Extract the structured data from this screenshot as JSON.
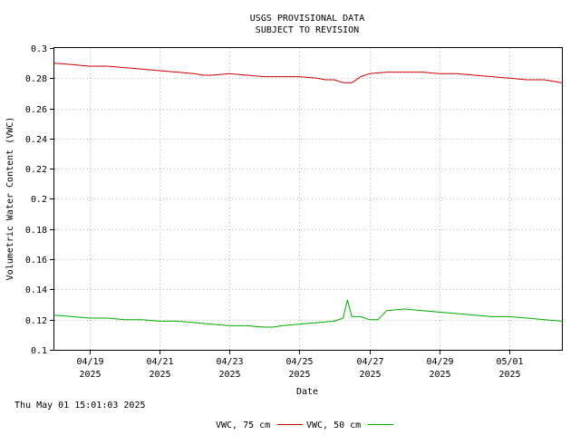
{
  "header": {
    "line1": "USGS PROVISIONAL DATA",
    "line2": "SUBJECT TO REVISION"
  },
  "footer": {
    "timestamp": "Thu May 01 15:01:03 2025"
  },
  "chart_data": {
    "type": "line",
    "xlabel": "Date",
    "ylabel": "Volumetric Water Content (VWC)",
    "xlim": [
      "2025-04-18T00:00",
      "2025-05-02T12:00"
    ],
    "ylim": [
      0.1,
      0.3
    ],
    "grid": true,
    "legend_position": "bottom-center",
    "y_ticks": [
      "0.1",
      "0.12",
      "0.14",
      "0.16",
      "0.18",
      "0.2",
      "0.22",
      "0.24",
      "0.26",
      "0.28",
      "0.3"
    ],
    "x_ticks": [
      {
        "date": "2025-04-19",
        "label": "04/19",
        "year": "2025"
      },
      {
        "date": "2025-04-21",
        "label": "04/21",
        "year": "2025"
      },
      {
        "date": "2025-04-23",
        "label": "04/23",
        "year": "2025"
      },
      {
        "date": "2025-04-25",
        "label": "04/25",
        "year": "2025"
      },
      {
        "date": "2025-04-27",
        "label": "04/27",
        "year": "2025"
      },
      {
        "date": "2025-04-29",
        "label": "04/29",
        "year": "2025"
      },
      {
        "date": "2025-05-01",
        "label": "05/01",
        "year": "2025"
      }
    ],
    "series": [
      {
        "name": "VWC, 75 cm",
        "color": "#cc0000",
        "x": [
          "2025-04-18T00:00",
          "2025-04-18T12:00",
          "2025-04-19T00:00",
          "2025-04-19T12:00",
          "2025-04-20T00:00",
          "2025-04-20T12:00",
          "2025-04-21T00:00",
          "2025-04-21T12:00",
          "2025-04-22T00:00",
          "2025-04-22T06:00",
          "2025-04-22T12:00",
          "2025-04-23T00:00",
          "2025-04-23T12:00",
          "2025-04-24T00:00",
          "2025-04-24T12:00",
          "2025-04-25T00:00",
          "2025-04-25T12:00",
          "2025-04-25T18:00",
          "2025-04-26T00:00",
          "2025-04-26T06:00",
          "2025-04-26T12:00",
          "2025-04-26T18:00",
          "2025-04-27T00:00",
          "2025-04-27T12:00",
          "2025-04-28T00:00",
          "2025-04-28T12:00",
          "2025-04-29T00:00",
          "2025-04-29T12:00",
          "2025-04-30T00:00",
          "2025-04-30T12:00",
          "2025-05-01T00:00",
          "2025-05-01T12:00",
          "2025-05-02T00:00",
          "2025-05-02T12:00"
        ],
        "values": [
          0.29,
          0.289,
          0.288,
          0.288,
          0.287,
          0.286,
          0.285,
          0.284,
          0.283,
          0.282,
          0.282,
          0.283,
          0.282,
          0.281,
          0.281,
          0.281,
          0.28,
          0.279,
          0.279,
          0.277,
          0.277,
          0.281,
          0.283,
          0.284,
          0.284,
          0.284,
          0.283,
          0.283,
          0.282,
          0.281,
          0.28,
          0.279,
          0.279,
          0.277
        ]
      },
      {
        "name": "VWC, 50 cm",
        "color": "#00aa00",
        "x": [
          "2025-04-18T00:00",
          "2025-04-18T12:00",
          "2025-04-19T00:00",
          "2025-04-19T12:00",
          "2025-04-20T00:00",
          "2025-04-20T12:00",
          "2025-04-21T00:00",
          "2025-04-21T12:00",
          "2025-04-22T00:00",
          "2025-04-22T12:00",
          "2025-04-23T00:00",
          "2025-04-23T12:00",
          "2025-04-24T00:00",
          "2025-04-24T06:00",
          "2025-04-24T12:00",
          "2025-04-25T00:00",
          "2025-04-25T12:00",
          "2025-04-26T00:00",
          "2025-04-26T06:00",
          "2025-04-26T09:00",
          "2025-04-26T12:00",
          "2025-04-26T18:00",
          "2025-04-27T00:00",
          "2025-04-27T06:00",
          "2025-04-27T12:00",
          "2025-04-28T00:00",
          "2025-04-28T12:00",
          "2025-04-29T00:00",
          "2025-04-29T12:00",
          "2025-04-30T00:00",
          "2025-04-30T12:00",
          "2025-05-01T00:00",
          "2025-05-01T12:00",
          "2025-05-02T00:00",
          "2025-05-02T12:00"
        ],
        "values": [
          0.123,
          0.122,
          0.121,
          0.121,
          0.12,
          0.12,
          0.119,
          0.119,
          0.118,
          0.117,
          0.116,
          0.116,
          0.115,
          0.115,
          0.116,
          0.117,
          0.118,
          0.119,
          0.121,
          0.133,
          0.122,
          0.122,
          0.12,
          0.12,
          0.126,
          0.127,
          0.126,
          0.125,
          0.124,
          0.123,
          0.122,
          0.122,
          0.121,
          0.12,
          0.119
        ]
      }
    ]
  }
}
